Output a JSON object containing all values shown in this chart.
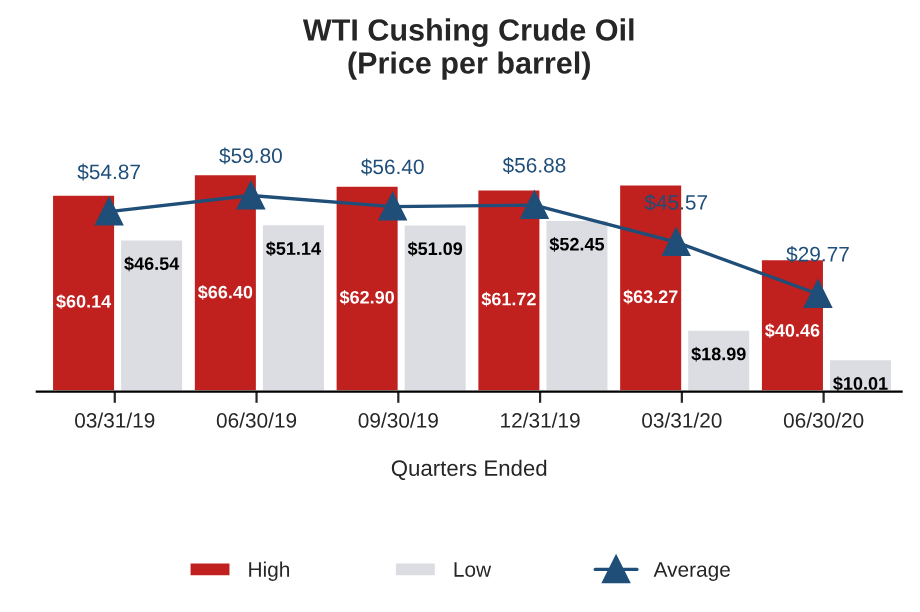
{
  "chart_data": {
    "type": "bar",
    "title": "WTI Cushing Crude Oil\n(Price per barrel)",
    "xlabel": "Quarters Ended",
    "categories": [
      "03/31/19",
      "06/30/19",
      "09/30/19",
      "12/31/19",
      "03/31/20",
      "06/30/20"
    ],
    "series": [
      {
        "name": "High",
        "color": "#c0201e",
        "values": [
          60.14,
          66.4,
          62.9,
          61.72,
          63.27,
          40.46
        ],
        "value_labels": [
          "$60.14",
          "$66.40",
          "$62.90",
          "$61.72",
          "$63.27",
          "$40.46"
        ]
      },
      {
        "name": "Low",
        "color": "#dcdde2",
        "values": [
          46.54,
          51.14,
          51.09,
          52.45,
          18.99,
          10.01
        ],
        "value_labels": [
          "$46.54",
          "$51.14",
          "$51.09",
          "$52.45",
          "$18.99",
          "$10.01"
        ]
      },
      {
        "name": "Average",
        "type": "line",
        "color": "#1f4e79",
        "marker": "triangle",
        "values": [
          54.87,
          59.8,
          56.4,
          56.88,
          45.57,
          29.77
        ],
        "value_labels": [
          "$54.87",
          "$59.80",
          "$56.40",
          "$56.88",
          "$45.57",
          "$29.77"
        ]
      }
    ],
    "legend": "bottom",
    "grid": false
  }
}
